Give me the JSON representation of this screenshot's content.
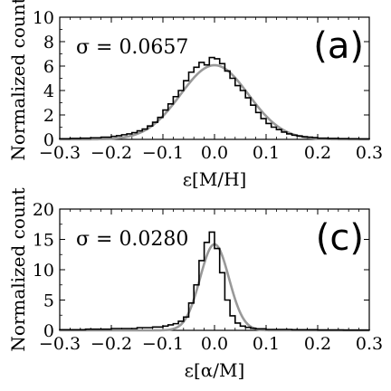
{
  "chart_data": [
    {
      "type": "line",
      "panel_tag": "(a)",
      "annotation": "σ = 0.0657",
      "xlabel": "ε[M/H]",
      "ylabel": "Normalized count",
      "xlim": [
        -0.3,
        0.3
      ],
      "ylim": [
        0,
        10
      ],
      "xticks": [
        -0.3,
        -0.2,
        -0.1,
        0.0,
        0.1,
        0.2,
        0.3
      ],
      "xtick_labels": [
        "−0.3",
        "−0.2",
        "−0.1",
        "0.0",
        "0.1",
        "0.2",
        "0.3"
      ],
      "yticks": [
        0,
        2,
        4,
        6,
        8,
        10
      ],
      "ytick_labels": [
        "0",
        "2",
        "4",
        "6",
        "8",
        "10"
      ],
      "grid": false,
      "series": [
        {
          "kind": "histogram",
          "color": "#000000",
          "bin_edges": [
            -0.3,
            -0.28,
            -0.26,
            -0.24,
            -0.22,
            -0.2,
            -0.19,
            -0.18,
            -0.17,
            -0.16,
            -0.15,
            -0.14,
            -0.13,
            -0.12,
            -0.11,
            -0.1,
            -0.09,
            -0.08,
            -0.07,
            -0.06,
            -0.05,
            -0.04,
            -0.03,
            -0.02,
            -0.01,
            0.0,
            0.01,
            0.02,
            0.03,
            0.04,
            0.05,
            0.06,
            0.07,
            0.08,
            0.09,
            0.1,
            0.11,
            0.12,
            0.13,
            0.14,
            0.15,
            0.16,
            0.17,
            0.18,
            0.19,
            0.2,
            0.22,
            0.24,
            0.26,
            0.28,
            0.3
          ],
          "values": [
            0.05,
            0.08,
            0.1,
            0.13,
            0.18,
            0.25,
            0.3,
            0.38,
            0.45,
            0.55,
            0.7,
            0.85,
            1.1,
            1.4,
            1.8,
            2.4,
            2.9,
            3.5,
            4.0,
            4.8,
            5.5,
            5.9,
            6.3,
            6.1,
            6.7,
            6.6,
            6.2,
            5.6,
            5.0,
            4.4,
            4.0,
            3.4,
            2.8,
            2.2,
            1.7,
            1.3,
            1.0,
            0.8,
            0.6,
            0.45,
            0.35,
            0.28,
            0.22,
            0.18,
            0.14,
            0.1,
            0.08,
            0.06,
            0.05,
            0.04
          ]
        },
        {
          "kind": "gaussian-fit",
          "color": "#999999",
          "mean": 0.0,
          "sigma": 0.0657,
          "peak": 6.07
        }
      ]
    },
    {
      "type": "line",
      "panel_tag": "(c)",
      "annotation": "σ = 0.0280",
      "xlabel": "ε[α/M]",
      "ylabel": "Normalized count",
      "xlim": [
        -0.3,
        0.3
      ],
      "ylim": [
        0,
        20
      ],
      "xticks": [
        -0.3,
        -0.2,
        -0.1,
        0.0,
        0.1,
        0.2,
        0.3
      ],
      "xtick_labels": [
        "−0.3",
        "−0.2",
        "−0.1",
        "0.0",
        "0.1",
        "0.2",
        "0.3"
      ],
      "yticks": [
        0,
        5,
        10,
        15,
        20
      ],
      "ytick_labels": [
        "0",
        "5",
        "10",
        "15",
        "20"
      ],
      "grid": false,
      "series": [
        {
          "kind": "histogram",
          "color": "#000000",
          "bin_edges": [
            -0.3,
            -0.25,
            -0.2,
            -0.15,
            -0.12,
            -0.1,
            -0.09,
            -0.08,
            -0.07,
            -0.06,
            -0.05,
            -0.04,
            -0.03,
            -0.02,
            -0.01,
            0.0,
            0.01,
            0.02,
            0.03,
            0.04,
            0.05,
            0.06,
            0.07,
            0.08,
            0.1,
            0.15,
            0.2,
            0.25,
            0.3
          ],
          "values": [
            0.1,
            0.2,
            0.3,
            0.45,
            0.55,
            0.7,
            0.9,
            1.1,
            1.5,
            2.2,
            4.5,
            7.5,
            11.5,
            14.5,
            16.2,
            13.5,
            9.5,
            5.0,
            2.4,
            1.2,
            0.7,
            0.5,
            0.35,
            0.25,
            0.15,
            0.1,
            0.06,
            0.04
          ]
        },
        {
          "kind": "gaussian-fit",
          "color": "#999999",
          "mean": 0.0,
          "sigma": 0.028,
          "peak": 14.2
        }
      ]
    }
  ]
}
